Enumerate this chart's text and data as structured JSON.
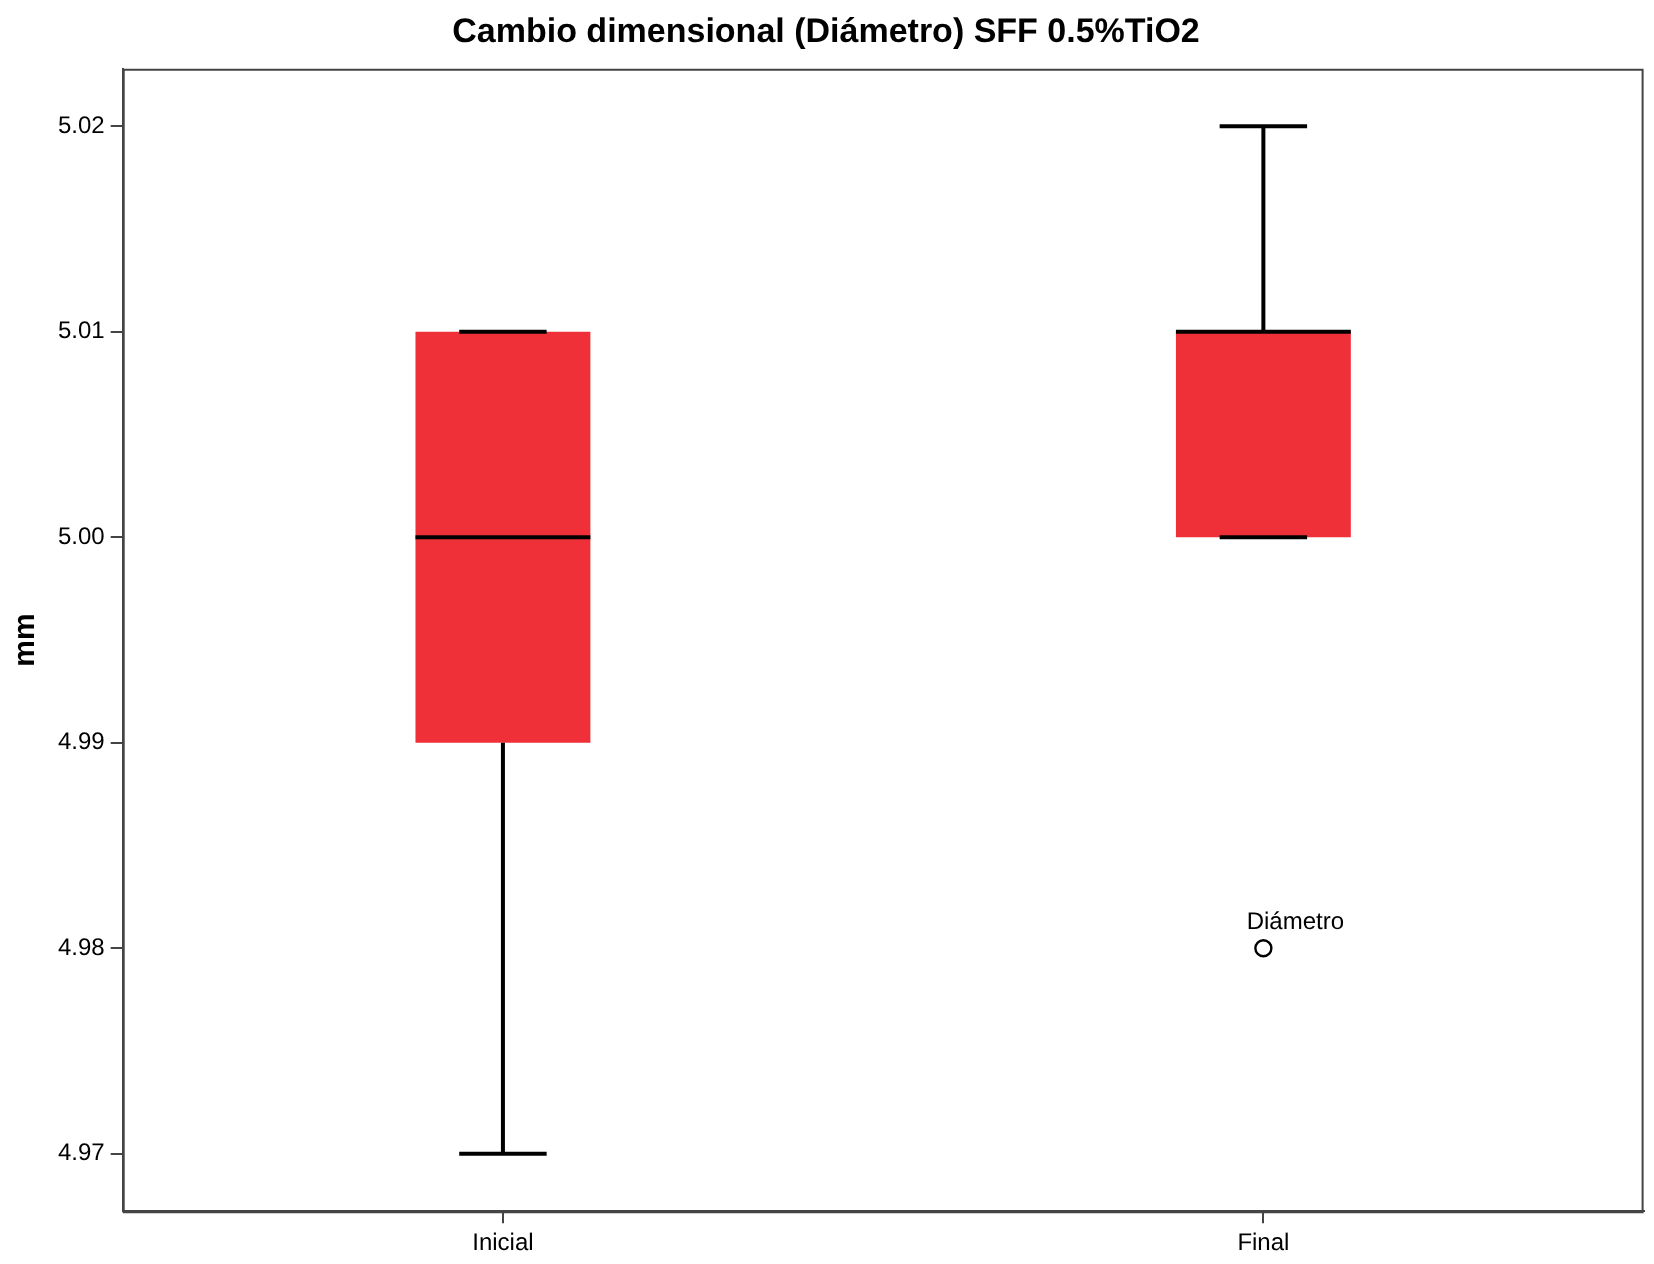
{
  "chart_data": {
    "type": "box",
    "title": "Cambio dimensional (Diámetro) SFF 0.5%TiO2",
    "ylabel": "mm",
    "categories": [
      "Inicial",
      "Final"
    ],
    "color": "#ef3038",
    "boxes": [
      {
        "low": 4.97,
        "q1": 4.99,
        "median": 5.0,
        "q3": 5.01,
        "high": 5.01
      },
      {
        "low": 5.0,
        "q1": 5.0,
        "median": 5.01,
        "q3": 5.01,
        "high": 5.02,
        "outliers": [
          4.98
        ]
      }
    ],
    "ylim": [
      4.9672,
      5.0228
    ],
    "yticks": [
      4.97,
      4.98,
      4.99,
      {
        "value": 5.0,
        "label": "5.00"
      },
      5.01,
      5.02
    ],
    "annotations": [
      "Diámetro"
    ]
  }
}
